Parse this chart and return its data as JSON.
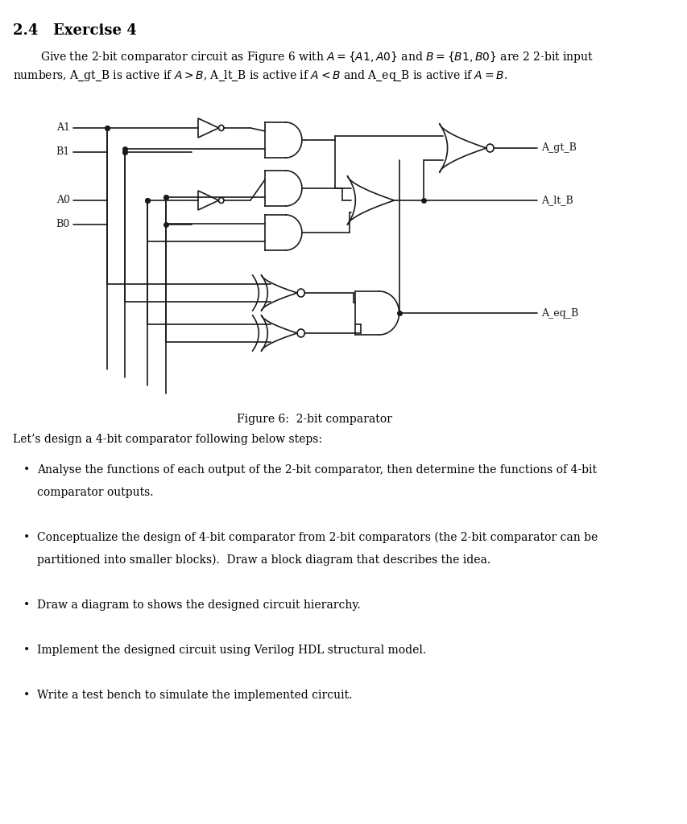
{
  "title": "2.4   Exercise 4",
  "intro_line1": "Give the 2-bit comparator circuit as Figure 6 with $A = \\{A1, A0\\}$ and $B = \\{B1, B0\\}$ are 2 2-bit input",
  "intro_line2": "numbers, A\\_gt\\_B is active if $A > B$, A\\_lt\\_B is active if $A < B$ and A\\_eq\\_B is active if $A = B$.",
  "figure_caption": "Figure 6:  2-bit comparator",
  "steps_intro": "Let’s design a 4-bit comparator following below steps:",
  "bullets": [
    "Analyse the functions of each output of the 2-bit comparator, then determine the functions of 4-bit\n    comparator outputs.",
    "Conceptualize the design of 4-bit comparator from 2-bit comparators (the 2-bit comparator can be\n    partitioned into smaller blocks).  Draw a block diagram that describes the idea.",
    "Draw a diagram to shows the designed circuit hierarchy.",
    "Implement the designed circuit using Verilog HDL structural model.",
    "Write a test bench to simulate the implemented circuit."
  ],
  "bg_color": "#ffffff",
  "text_color": "#000000",
  "circuit_color": "#1a1a1a"
}
